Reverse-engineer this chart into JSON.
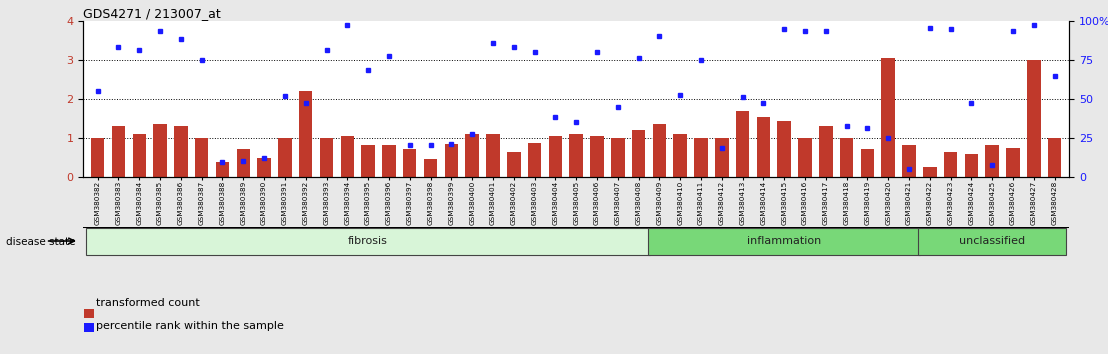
{
  "title": "GDS4271 / 213007_at",
  "samples": [
    "GSM380382",
    "GSM380383",
    "GSM380384",
    "GSM380385",
    "GSM380386",
    "GSM380387",
    "GSM380388",
    "GSM380389",
    "GSM380390",
    "GSM380391",
    "GSM380392",
    "GSM380393",
    "GSM380394",
    "GSM380395",
    "GSM380396",
    "GSM380397",
    "GSM380398",
    "GSM380399",
    "GSM380400",
    "GSM380401",
    "GSM380402",
    "GSM380403",
    "GSM380404",
    "GSM380405",
    "GSM380406",
    "GSM380407",
    "GSM380408",
    "GSM380409",
    "GSM380410",
    "GSM380411",
    "GSM380412",
    "GSM380413",
    "GSM380414",
    "GSM380415",
    "GSM380416",
    "GSM380417",
    "GSM380418",
    "GSM380419",
    "GSM380420",
    "GSM380421",
    "GSM380422",
    "GSM380423",
    "GSM380424",
    "GSM380425",
    "GSM380426",
    "GSM380427",
    "GSM380428"
  ],
  "bar_values": [
    1.0,
    1.3,
    1.1,
    1.35,
    1.3,
    1.0,
    0.38,
    0.72,
    0.5,
    1.0,
    2.2,
    1.0,
    1.05,
    0.82,
    0.82,
    0.73,
    0.47,
    0.85,
    1.1,
    1.1,
    0.65,
    0.88,
    1.05,
    1.1,
    1.05,
    1.0,
    1.2,
    1.35,
    1.1,
    1.0,
    1.0,
    1.7,
    1.55,
    1.45,
    1.0,
    1.3,
    1.0,
    0.72,
    3.05,
    0.83,
    0.25,
    0.65,
    0.6,
    0.82,
    0.75,
    3.0,
    1.0
  ],
  "dot_values": [
    2.2,
    3.35,
    3.25,
    3.75,
    3.55,
    3.0,
    0.38,
    0.4,
    0.5,
    2.07,
    1.9,
    3.25,
    3.9,
    2.75,
    3.12,
    0.82,
    0.82,
    0.85,
    1.1,
    3.45,
    3.35,
    3.22,
    1.55,
    1.4,
    3.22,
    1.8,
    3.05,
    3.62,
    2.1,
    3.0,
    0.75,
    2.05,
    1.9,
    3.8,
    3.75,
    3.75,
    1.3,
    1.27,
    1.0,
    0.2,
    3.82,
    3.8,
    1.9,
    0.3,
    3.75,
    3.9,
    2.6
  ],
  "groups": [
    {
      "label": "fibrosis",
      "start": 0,
      "end": 27,
      "color": "#d8f5d8"
    },
    {
      "label": "inflammation",
      "start": 27,
      "end": 40,
      "color": "#78d878"
    },
    {
      "label": "unclassified",
      "start": 40,
      "end": 47,
      "color": "#78d878"
    }
  ],
  "bar_color": "#c0392b",
  "dot_color": "#1a1aff",
  "ylim_left": [
    0,
    4
  ],
  "ylim_right": [
    0,
    100
  ],
  "yticks_left": [
    0,
    1,
    2,
    3,
    4
  ],
  "yticks_right": [
    0,
    25,
    50,
    75,
    100
  ],
  "bg_color": "#e8e8e8",
  "plot_bg": "#ffffff",
  "legend_items": [
    "transformed count",
    "percentile rank within the sample"
  ],
  "disease_state_label": "disease state"
}
